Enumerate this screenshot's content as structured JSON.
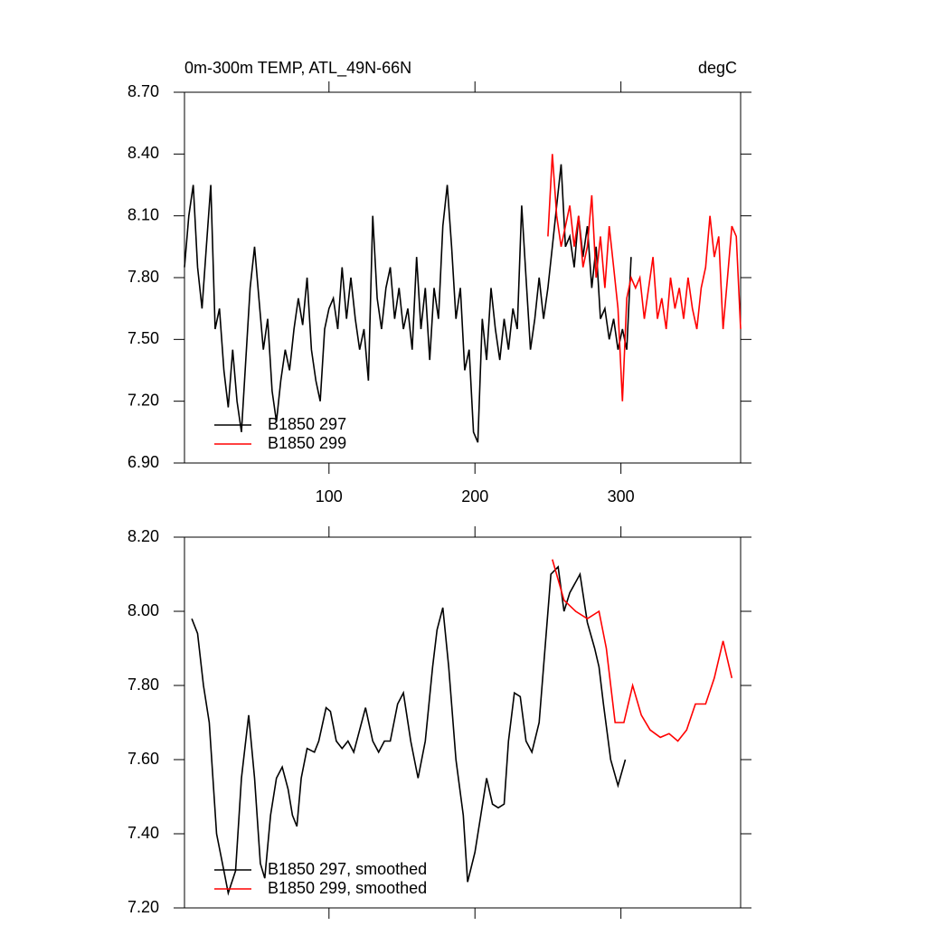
{
  "chart_data": [
    {
      "type": "line",
      "title": "0m-300m TEMP, ATL_49N-66N",
      "units_label": "degC",
      "xlim": [
        1,
        382
      ],
      "xticks": [
        100,
        200,
        300
      ],
      "xtick_labels": true,
      "ylim": [
        6.9,
        8.7
      ],
      "yticks": [
        {
          "value": 6.9,
          "label": "6.90"
        },
        {
          "value": 7.2,
          "label": "7.20"
        },
        {
          "value": 7.5,
          "label": "7.50"
        },
        {
          "value": 7.8,
          "label": "7.80"
        },
        {
          "value": 8.1,
          "label": "8.10"
        },
        {
          "value": 8.4,
          "label": "8.40"
        },
        {
          "value": 8.7,
          "label": "8.70"
        }
      ],
      "series": [
        {
          "name": "B1850 297",
          "color": "#000000",
          "x": [
            1,
            4,
            7,
            10,
            13,
            16,
            19,
            22,
            25,
            28,
            31,
            34,
            37,
            40,
            43,
            46,
            49,
            52,
            55,
            58,
            61,
            64,
            67,
            70,
            73,
            76,
            79,
            82,
            85,
            88,
            91,
            94,
            97,
            100,
            103,
            106,
            109,
            112,
            115,
            118,
            121,
            124,
            127,
            130,
            133,
            136,
            139,
            142,
            145,
            148,
            151,
            154,
            157,
            160,
            163,
            166,
            169,
            172,
            175,
            178,
            181,
            184,
            187,
            190,
            193,
            196,
            199,
            202,
            205,
            208,
            211,
            214,
            217,
            220,
            223,
            226,
            229,
            232,
            235,
            238,
            241,
            244,
            247,
            250,
            253,
            256,
            259,
            262,
            265,
            268,
            271,
            274,
            277,
            280,
            283,
            286,
            289,
            292,
            295,
            298,
            301,
            304,
            307
          ],
          "values": [
            7.85,
            8.1,
            8.25,
            7.85,
            7.65,
            7.95,
            8.25,
            7.55,
            7.65,
            7.35,
            7.17,
            7.45,
            7.2,
            7.05,
            7.4,
            7.75,
            7.95,
            7.7,
            7.45,
            7.6,
            7.25,
            7.1,
            7.3,
            7.45,
            7.35,
            7.55,
            7.7,
            7.57,
            7.8,
            7.45,
            7.3,
            7.2,
            7.55,
            7.65,
            7.7,
            7.55,
            7.85,
            7.6,
            7.8,
            7.6,
            7.45,
            7.55,
            7.3,
            8.1,
            7.7,
            7.55,
            7.75,
            7.85,
            7.6,
            7.75,
            7.55,
            7.65,
            7.45,
            7.9,
            7.55,
            7.75,
            7.4,
            7.75,
            7.6,
            8.05,
            8.25,
            7.95,
            7.6,
            7.75,
            7.35,
            7.45,
            7.05,
            7.0,
            7.6,
            7.4,
            7.75,
            7.55,
            7.4,
            7.6,
            7.45,
            7.65,
            7.55,
            8.15,
            7.8,
            7.45,
            7.6,
            7.8,
            7.6,
            7.75,
            7.95,
            8.15,
            8.35,
            7.95,
            8.0,
            7.85,
            8.1,
            7.9,
            8.05,
            7.75,
            7.95,
            7.6,
            7.65,
            7.5,
            7.6,
            7.45,
            7.55,
            7.45,
            7.9
          ]
        },
        {
          "name": "B1850 299",
          "color": "#ff0000",
          "x": [
            250,
            253,
            256,
            259,
            262,
            265,
            268,
            271,
            274,
            277,
            280,
            283,
            286,
            289,
            292,
            295,
            298,
            301,
            304,
            307,
            310,
            313,
            316,
            319,
            322,
            325,
            328,
            331,
            334,
            337,
            340,
            343,
            346,
            349,
            352,
            355,
            358,
            361,
            364,
            367,
            370,
            373,
            376,
            379,
            382
          ],
          "values": [
            8.0,
            8.4,
            8.1,
            7.95,
            8.05,
            8.15,
            7.95,
            8.1,
            7.85,
            7.95,
            8.2,
            7.8,
            8.0,
            7.75,
            8.05,
            7.85,
            7.65,
            7.2,
            7.7,
            7.8,
            7.75,
            7.8,
            7.6,
            7.75,
            7.9,
            7.6,
            7.7,
            7.55,
            7.8,
            7.65,
            7.75,
            7.6,
            7.8,
            7.65,
            7.55,
            7.75,
            7.85,
            8.1,
            7.9,
            8.0,
            7.55,
            7.8,
            8.05,
            8.0,
            7.55
          ]
        }
      ]
    },
    {
      "type": "line",
      "xlim": [
        1,
        382
      ],
      "xticks": [
        100,
        200,
        300
      ],
      "xtick_labels": false,
      "ylim": [
        7.2,
        8.2
      ],
      "yticks": [
        {
          "value": 7.2,
          "label": "7.20"
        },
        {
          "value": 7.4,
          "label": "7.40"
        },
        {
          "value": 7.6,
          "label": "7.60"
        },
        {
          "value": 7.8,
          "label": "7.80"
        },
        {
          "value": 8.0,
          "label": "8.00"
        },
        {
          "value": 8.2,
          "label": "8.20"
        }
      ],
      "series": [
        {
          "name": "B1850 297, smoothed",
          "color": "#000000",
          "x": [
            6,
            10,
            14,
            18,
            23,
            28,
            31,
            36,
            40,
            45,
            49,
            53,
            56,
            60,
            64,
            68,
            72,
            75,
            78,
            81,
            85,
            90,
            93,
            98,
            101,
            105,
            109,
            113,
            117,
            121,
            125,
            130,
            134,
            138,
            142,
            147,
            151,
            156,
            161,
            166,
            171,
            174,
            178,
            182,
            187,
            192,
            195,
            200,
            204,
            208,
            212,
            216,
            220,
            223,
            227,
            231,
            235,
            239,
            244,
            248,
            252,
            257,
            261,
            265,
            272,
            277,
            282,
            285,
            288,
            293,
            298,
            303
          ],
          "values": [
            7.98,
            7.94,
            7.8,
            7.7,
            7.4,
            7.3,
            7.24,
            7.3,
            7.55,
            7.72,
            7.55,
            7.32,
            7.28,
            7.45,
            7.55,
            7.58,
            7.52,
            7.45,
            7.42,
            7.55,
            7.63,
            7.62,
            7.65,
            7.74,
            7.73,
            7.65,
            7.63,
            7.65,
            7.62,
            7.68,
            7.74,
            7.65,
            7.62,
            7.65,
            7.65,
            7.75,
            7.78,
            7.65,
            7.55,
            7.65,
            7.85,
            7.95,
            8.01,
            7.85,
            7.6,
            7.45,
            7.27,
            7.35,
            7.45,
            7.55,
            7.48,
            7.47,
            7.48,
            7.65,
            7.78,
            7.77,
            7.65,
            7.62,
            7.7,
            7.9,
            8.1,
            8.12,
            8.0,
            8.05,
            8.1,
            7.97,
            7.9,
            7.85,
            7.75,
            7.6,
            7.53,
            7.6
          ]
        },
        {
          "name": "B1850 299, smoothed",
          "color": "#ff0000",
          "x": [
            253,
            261,
            269,
            277,
            285,
            290,
            296,
            302,
            308,
            314,
            320,
            327,
            333,
            339,
            345,
            351,
            358,
            364,
            370,
            376
          ],
          "values": [
            8.14,
            8.03,
            8.0,
            7.98,
            8.0,
            7.9,
            7.7,
            7.7,
            7.8,
            7.72,
            7.68,
            7.66,
            7.67,
            7.65,
            7.68,
            7.75,
            7.75,
            7.82,
            7.92,
            7.82
          ]
        }
      ]
    }
  ]
}
